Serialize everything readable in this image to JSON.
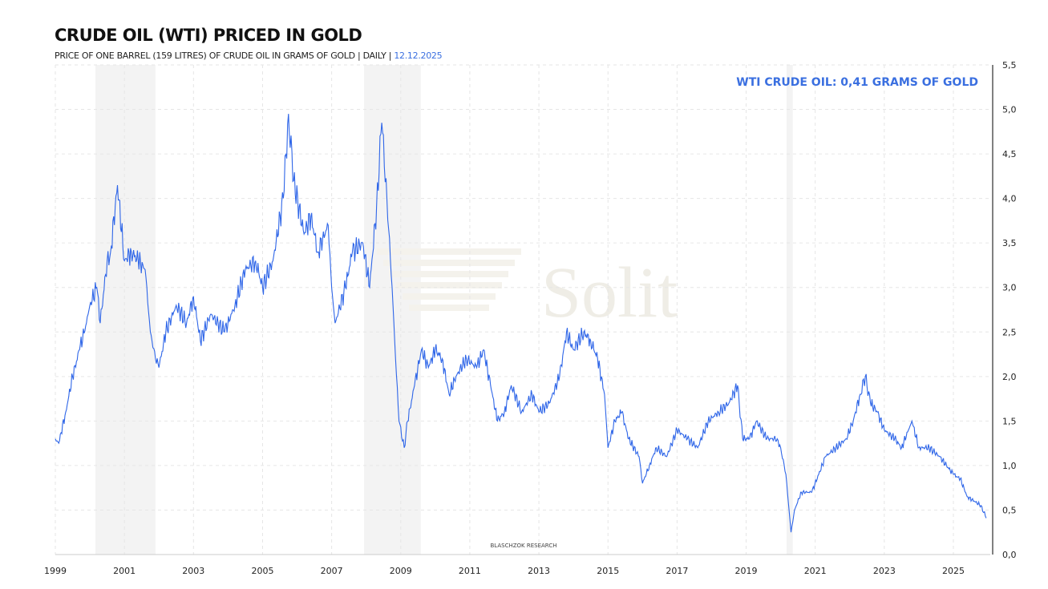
{
  "header": {
    "title": "CRUDE OIL (WTI) PRICED IN GOLD",
    "subtitle": "PRICE OF ONE BARREL (159 LITRES) OF CRUDE OIL IN GRAMS OF GOLD |  DAILY | ",
    "date": "12.12.2025"
  },
  "watermark": "Solit",
  "source": "BLASCHZOK  RESEARCH",
  "chart_data": {
    "type": "line",
    "title": "CRUDE OIL (WTI) PRICED IN GOLD",
    "annotation": "WTI CRUDE OIL: 0,41 GRAMS OF  GOLD",
    "ylim": [
      0,
      5.5
    ],
    "xlim": [
      1999,
      2025.95
    ],
    "y_ticks": [
      "0,0",
      "0,5",
      "1,0",
      "1,5",
      "2,0",
      "2,5",
      "3,0",
      "3,5",
      "4,0",
      "4,5",
      "5,0",
      "5,5"
    ],
    "x_ticks": [
      "1999",
      "2001",
      "2003",
      "2005",
      "2007",
      "2009",
      "2011",
      "2013",
      "2015",
      "2017",
      "2019",
      "2021",
      "2023",
      "2025"
    ],
    "grid": true,
    "y_axis_side": "right",
    "line_color": "#2f66e8",
    "shaded_periods": [
      [
        2000.16,
        2001.9
      ],
      [
        2007.94,
        2009.58
      ],
      [
        2020.17,
        2020.35
      ]
    ],
    "series": [
      {
        "x": [
          1999.0,
          1999.1,
          1999.3,
          1999.5,
          1999.7,
          1999.9,
          2000.0,
          2000.2,
          2000.3,
          2000.5,
          2000.6,
          2000.8,
          2001.0,
          2001.2,
          2001.4,
          2001.6,
          2001.75,
          2001.9,
          2002.0,
          2002.2,
          2002.5,
          2002.8,
          2003.0,
          2003.2,
          2003.5,
          2003.9,
          2004.2,
          2004.5,
          2004.8,
          2005.0,
          2005.3,
          2005.6,
          2005.75,
          2005.9,
          2006.2,
          2006.4,
          2006.6,
          2006.9,
          2007.0,
          2007.1,
          2007.4,
          2007.6,
          2007.9,
          2008.1,
          2008.3,
          2008.45,
          2008.6,
          2008.75,
          2008.85,
          2008.95,
          2009.1,
          2009.2,
          2009.4,
          2009.6,
          2009.8,
          2010.0,
          2010.2,
          2010.4,
          2010.6,
          2010.9,
          2011.2,
          2011.4,
          2011.6,
          2011.8,
          2012.0,
          2012.2,
          2012.5,
          2012.8,
          2013.0,
          2013.3,
          2013.6,
          2013.8,
          2014.0,
          2014.3,
          2014.5,
          2014.7,
          2014.9,
          2015.0,
          2015.2,
          2015.4,
          2015.6,
          2015.9,
          2016.0,
          2016.2,
          2016.4,
          2016.7,
          2017.0,
          2017.3,
          2017.6,
          2017.9,
          2018.2,
          2018.5,
          2018.75,
          2018.9,
          2019.1,
          2019.3,
          2019.6,
          2019.9,
          2020.0,
          2020.15,
          2020.3,
          2020.4,
          2020.6,
          2020.9,
          2021.1,
          2021.3,
          2021.6,
          2021.9,
          2022.1,
          2022.3,
          2022.45,
          2022.6,
          2022.8,
          2023.0,
          2023.3,
          2023.5,
          2023.7,
          2023.8,
          2024.0,
          2024.3,
          2024.6,
          2024.8,
          2025.0,
          2025.2,
          2025.4,
          2025.6,
          2025.8,
          2025.95
        ],
        "values": [
          1.3,
          1.25,
          1.6,
          2.0,
          2.3,
          2.6,
          2.8,
          3.0,
          2.6,
          3.3,
          3.4,
          4.15,
          3.3,
          3.4,
          3.3,
          3.2,
          2.5,
          2.2,
          2.1,
          2.5,
          2.8,
          2.6,
          2.9,
          2.4,
          2.7,
          2.5,
          2.8,
          3.2,
          3.3,
          3.0,
          3.3,
          4.0,
          4.95,
          4.2,
          3.6,
          3.8,
          3.4,
          3.7,
          3.0,
          2.6,
          3.0,
          3.4,
          3.5,
          3.0,
          3.9,
          4.85,
          4.0,
          3.0,
          2.2,
          1.5,
          1.2,
          1.5,
          1.9,
          2.3,
          2.1,
          2.3,
          2.2,
          1.8,
          2.0,
          2.2,
          2.1,
          2.3,
          1.9,
          1.5,
          1.6,
          1.9,
          1.6,
          1.8,
          1.6,
          1.7,
          2.0,
          2.5,
          2.3,
          2.5,
          2.4,
          2.2,
          1.8,
          1.2,
          1.5,
          1.6,
          1.3,
          1.1,
          0.8,
          1.0,
          1.2,
          1.1,
          1.4,
          1.3,
          1.2,
          1.5,
          1.6,
          1.7,
          1.9,
          1.3,
          1.3,
          1.5,
          1.3,
          1.3,
          1.2,
          0.9,
          0.25,
          0.5,
          0.7,
          0.7,
          0.9,
          1.1,
          1.2,
          1.3,
          1.5,
          1.8,
          2.0,
          1.7,
          1.6,
          1.4,
          1.3,
          1.2,
          1.4,
          1.5,
          1.2,
          1.2,
          1.1,
          1.0,
          0.9,
          0.85,
          0.65,
          0.6,
          0.55,
          0.41
        ]
      }
    ]
  }
}
